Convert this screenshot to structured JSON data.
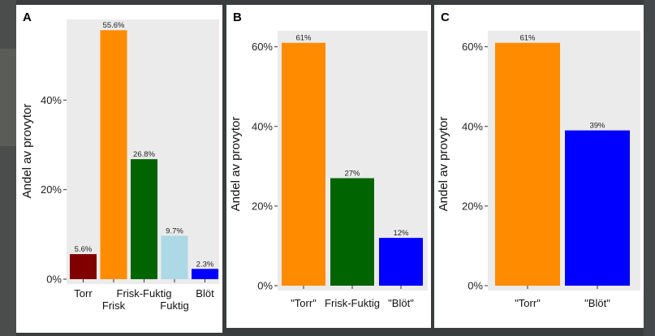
{
  "colors": {
    "torr": "#800000",
    "frisk": "#ff8c00",
    "frisk_fuktig": "#006400",
    "fuktig": "#add8e6",
    "blot": "#0000ff",
    "plot_bg": "#ebebeb"
  },
  "chart_data": [
    {
      "panel": "A",
      "type": "bar",
      "ylabel": "Andel av provytor",
      "categories": [
        "Torr",
        "Frisk",
        "Frisk-Fuktig",
        "Fuktig",
        "Blöt"
      ],
      "values": [
        5.6,
        55.6,
        26.8,
        9.7,
        2.3
      ],
      "value_labels": [
        "5.6%",
        "55.6%",
        "26.8%",
        "9.7%",
        "2.3%"
      ],
      "bar_colors": [
        "#800000",
        "#ff8c00",
        "#006400",
        "#add8e6",
        "#0000ff"
      ],
      "label_row": [
        0,
        1,
        0,
        1,
        0
      ],
      "yticks": [
        0,
        20,
        40
      ],
      "ytick_labels": [
        "0%",
        "20%",
        "40%"
      ],
      "ylim": [
        0,
        58
      ],
      "grid": false
    },
    {
      "panel": "B",
      "type": "bar",
      "ylabel": "Andel av provytor",
      "categories": [
        "\"Torr\"",
        "Frisk-Fuktig",
        "\"Blöt\""
      ],
      "values": [
        61,
        27,
        12
      ],
      "value_labels": [
        "61%",
        "27%",
        "12%"
      ],
      "bar_colors": [
        "#ff8c00",
        "#006400",
        "#0000ff"
      ],
      "label_row": [
        0,
        0,
        0
      ],
      "yticks": [
        0,
        20,
        40,
        60
      ],
      "ytick_labels": [
        "0%",
        "20%",
        "40%",
        "60%"
      ],
      "ylim": [
        0,
        64
      ],
      "grid": false
    },
    {
      "panel": "C",
      "type": "bar",
      "ylabel": "Andel av provytor",
      "categories": [
        "\"Torr\"",
        "\"Blöt\""
      ],
      "values": [
        61,
        39
      ],
      "value_labels": [
        "61%",
        "39%"
      ],
      "bar_colors": [
        "#ff8c00",
        "#0000ff"
      ],
      "label_row": [
        0,
        0
      ],
      "yticks": [
        0,
        20,
        40,
        60
      ],
      "ytick_labels": [
        "0%",
        "20%",
        "40%",
        "60%"
      ],
      "ylim": [
        0,
        64
      ],
      "grid": false
    }
  ]
}
